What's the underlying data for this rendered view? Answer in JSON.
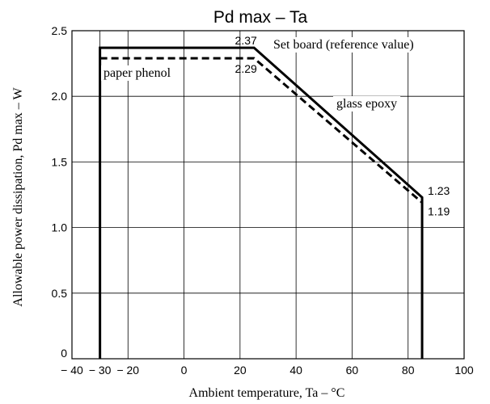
{
  "chart_data": {
    "type": "line",
    "title": "Pd max  –  Ta",
    "xlabel": "Ambient temperature,  Ta  –  °C",
    "ylabel": "Allowable power dissipation,  Pd max  –  W",
    "xlim": [
      -40,
      100
    ],
    "ylim": [
      0,
      2.5
    ],
    "xticks": [
      -40,
      -30,
      -20,
      0,
      20,
      40,
      60,
      80,
      100
    ],
    "xtick_labels": [
      "− 40",
      "− 30",
      "− 20",
      "0",
      "20",
      "40",
      "60",
      "80",
      "100"
    ],
    "yticks": [
      0,
      0.5,
      1.0,
      1.5,
      2.0,
      2.5
    ],
    "ytick_labels": [
      "0",
      "0.5",
      "1.0",
      "1.5",
      "2.0",
      "2.5"
    ],
    "grid": true,
    "series": [
      {
        "name": "glass epoxy",
        "style": "solid",
        "x": [
          -30,
          -30,
          25,
          85,
          85
        ],
        "y": [
          0,
          2.37,
          2.37,
          1.23,
          0
        ]
      },
      {
        "name": "paper phenol",
        "style": "dashed",
        "x": [
          -30,
          25,
          85
        ],
        "y": [
          2.29,
          2.29,
          1.19
        ]
      }
    ],
    "annotations": [
      {
        "text": "2.37",
        "x": 25,
        "y": 2.37
      },
      {
        "text": "2.29",
        "x": 25,
        "y": 2.29
      },
      {
        "text": "1.23",
        "x": 85,
        "y": 1.23
      },
      {
        "text": "1.19",
        "x": 85,
        "y": 1.19
      },
      {
        "text": "Set board (reference value)"
      }
    ]
  }
}
